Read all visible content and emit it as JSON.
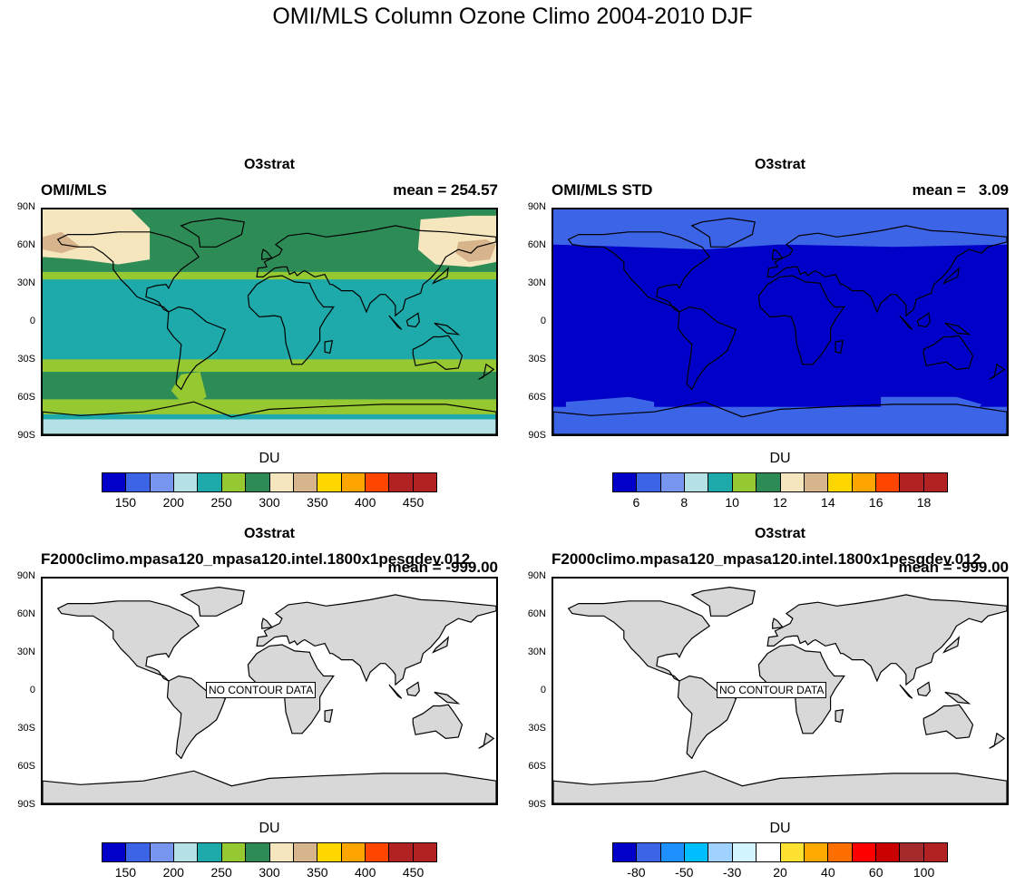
{
  "title": "OMI/MLS Column Ozone Climo 2004-2010 DJF",
  "lat_labels": [
    "90N",
    "60N",
    "30N",
    "0",
    "30S",
    "60S",
    "90S"
  ],
  "panels": [
    {
      "var": "O3strat",
      "left": "OMI/MLS",
      "right": "mean = 254.57",
      "units": "DU",
      "nodata": "",
      "colorbar": {
        "colors": [
          "#0000c8",
          "#3c64e6",
          "#7896f0",
          "#b4e1e6",
          "#1eaaaa",
          "#96c832",
          "#2d8c55",
          "#f5e6be",
          "#d7b48c",
          "#ffd700",
          "#ffa500",
          "#ff4500",
          "#b22222",
          "#b22222"
        ],
        "labels": [
          "150",
          "200",
          "250",
          "300",
          "350",
          "400",
          "450"
        ]
      }
    },
    {
      "var": "O3strat",
      "left": "OMI/MLS STD",
      "right": "mean =   3.09",
      "units": "DU",
      "nodata": "",
      "colorbar": {
        "colors": [
          "#0000c8",
          "#3c64e6",
          "#7896f0",
          "#b4e1e6",
          "#1eaaaa",
          "#96c832",
          "#2d8c55",
          "#f5e6be",
          "#d7b48c",
          "#ffd700",
          "#ffa500",
          "#ff4500",
          "#b22222",
          "#b22222"
        ],
        "labels": [
          "6",
          "8",
          "10",
          "12",
          "14",
          "16",
          "18"
        ]
      }
    },
    {
      "var": "O3strat",
      "left": "F2000climo.mpasa120_mpasa120.intel.1800x1pesgdev.012",
      "right": "mean = -999.00",
      "units": "DU",
      "nodata": "NO CONTOUR DATA",
      "colorbar": {
        "colors": [
          "#0000c8",
          "#3c64e6",
          "#7896f0",
          "#b4e1e6",
          "#1eaaaa",
          "#96c832",
          "#2d8c55",
          "#f5e6be",
          "#d7b48c",
          "#ffd700",
          "#ffa500",
          "#ff4500",
          "#b22222",
          "#b22222"
        ],
        "labels": [
          "150",
          "200",
          "250",
          "300",
          "350",
          "400",
          "450"
        ]
      }
    },
    {
      "var": "O3strat",
      "left": "F2000climo.mpasa120_mpasa120.intel.1800x1pesgdev.012",
      "right": "mean = -999.00",
      "units": "DU",
      "nodata": "NO CONTOUR DATA",
      "colorbar": {
        "colors": [
          "#0000c8",
          "#3c64e6",
          "#1e90ff",
          "#00bfff",
          "#a0d2ff",
          "#d2f5ff",
          "#ffffff",
          "#ffe132",
          "#ffaa00",
          "#ff6e00",
          "#ff0000",
          "#c80000",
          "#a52a2a",
          "#b22222"
        ],
        "labels": [
          "-80",
          "-50",
          "-30",
          "20",
          "40",
          "60",
          "100"
        ]
      }
    }
  ]
}
